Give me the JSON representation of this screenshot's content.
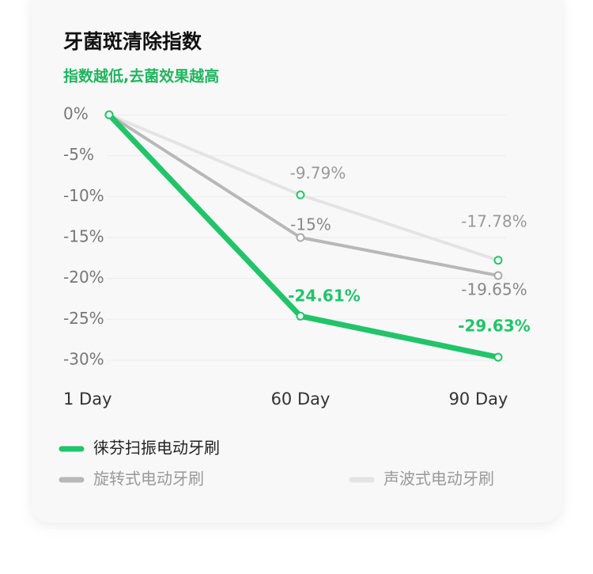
{
  "chart_data": {
    "type": "line",
    "title": "牙菌斑清除指数",
    "subtitle": "指数越低,去菌效果越高",
    "categories": [
      "1 Day",
      "60 Day",
      "90 Day"
    ],
    "series": [
      {
        "name": "徕芬扫振电动牙刷",
        "color": "#22c46a",
        "values": [
          0,
          -24.61,
          -29.63
        ],
        "value_labels": [
          null,
          "-24.61%",
          "-29.63%"
        ]
      },
      {
        "name": "旋转式电动牙刷",
        "color": "#b8b8b8",
        "values": [
          0,
          -15,
          -19.65
        ],
        "value_labels": [
          null,
          "-15%",
          "-19.65%"
        ]
      },
      {
        "name": "声波式电动牙刷",
        "color": "#e4e4e4",
        "values": [
          0,
          -9.79,
          -17.78
        ],
        "value_labels": [
          null,
          "-9.79%",
          "-17.78%"
        ]
      }
    ],
    "ylim": [
      -30,
      0
    ],
    "yticks": [
      {
        "value": 0,
        "label": "0%"
      },
      {
        "value": -5,
        "label": "-5%"
      },
      {
        "value": -10,
        "label": "-10%"
      },
      {
        "value": -15,
        "label": "-15%"
      },
      {
        "value": -20,
        "label": "-20%"
      },
      {
        "value": -25,
        "label": "-25%"
      },
      {
        "value": -30,
        "label": "-30%"
      }
    ],
    "grid": true
  }
}
